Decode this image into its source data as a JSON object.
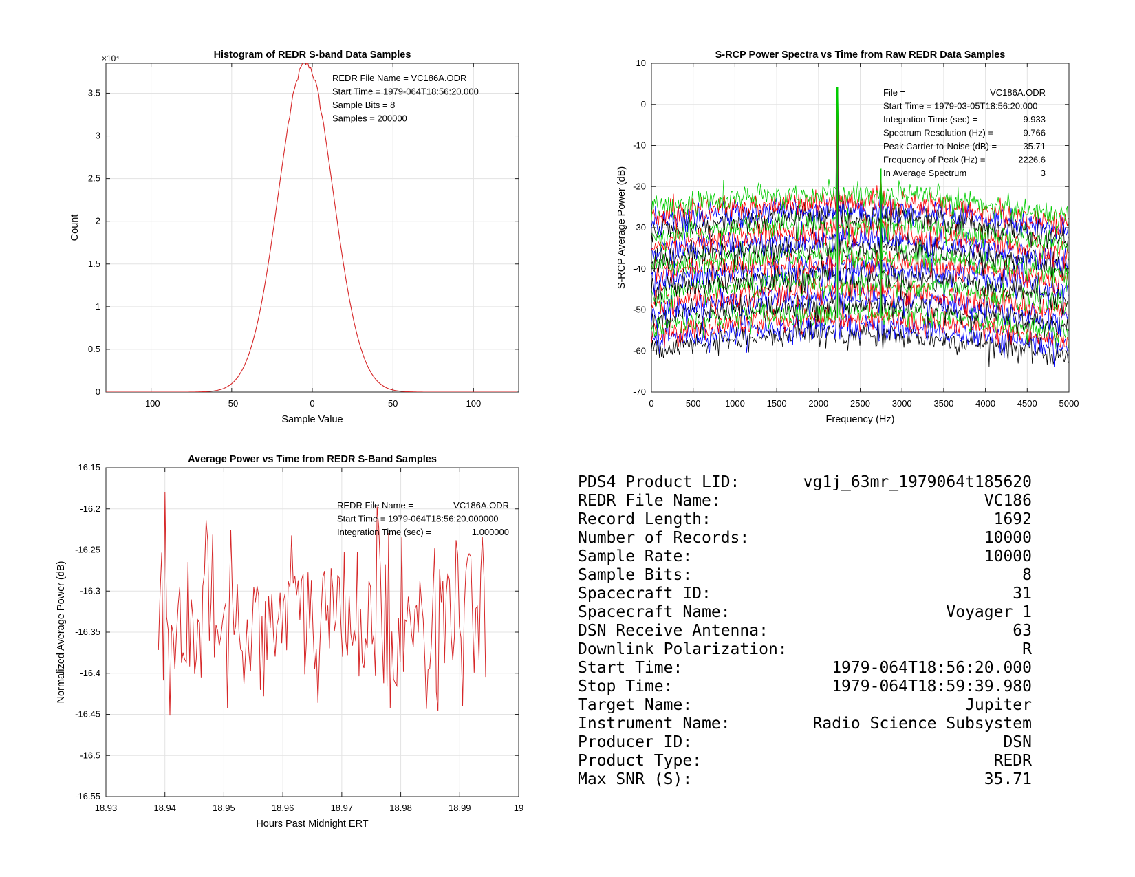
{
  "colors": {
    "histogram": "#d62728",
    "spectra": [
      "#000000",
      "#0000ff",
      "#ff0000",
      "#00cc00"
    ],
    "power": "#d62728"
  },
  "chart_data": [
    {
      "type": "line",
      "title": "Histogram of REDR S-band Data Samples",
      "xlabel": "Sample Value",
      "ylabel": "Count",
      "xlim": [
        -128,
        128
      ],
      "ylim": [
        0,
        38500
      ],
      "y_exponent_label": "×10⁴",
      "xticks": [
        -100,
        -50,
        0,
        50,
        100
      ],
      "yticks": [
        0,
        5000,
        10000,
        15000,
        20000,
        25000,
        30000,
        35000
      ],
      "ytick_labels": [
        "0",
        "0.5",
        "1",
        "1.5",
        "2",
        "2.5",
        "3",
        "3.5"
      ],
      "grid": true,
      "distribution": {
        "shape": "gaussian",
        "mean": -4,
        "std": 17,
        "peak": 38500,
        "support": [
          -128,
          127
        ]
      },
      "annotation": [
        "REDR File Name = VC186A.ODR",
        "Start Time = 1979-064T18:56:20.000",
        "Sample Bits = 8",
        "Samples = 200000"
      ]
    },
    {
      "type": "line",
      "title": "S-RCP Power Spectra vs Time from Raw REDR Data Samples",
      "xlabel": "Frequency (Hz)",
      "ylabel": "S-RCP Average Power (dB)",
      "xlim": [
        0,
        5000
      ],
      "ylim": [
        -70,
        10
      ],
      "xticks": [
        0,
        500,
        1000,
        1500,
        2000,
        2500,
        3000,
        3500,
        4000,
        4500,
        5000
      ],
      "yticks": [
        -70,
        -60,
        -50,
        -40,
        -30,
        -20,
        -10,
        0,
        10
      ],
      "grid": true,
      "series_count": 20,
      "series_offset_db": [
        -56,
        -22
      ],
      "carrier_peaks": [
        {
          "x": 2226.6,
          "y": 4.2
        },
        {
          "x": 2750,
          "y": -15.5
        }
      ],
      "annotation": [
        {
          "label": "File =",
          "value": "VC186A.ODR"
        },
        {
          "label": "Start Time = 1979-03-05T18:56:20.000",
          "value": ""
        },
        {
          "label": "Integration Time (sec) =",
          "value": "9.933"
        },
        {
          "label": "Spectrum Resolution (Hz) =",
          "value": "9.766"
        },
        {
          "label": "Peak Carrier-to-Noise (dB) =",
          "value": "35.71"
        },
        {
          "label": "  Frequency of Peak (Hz) =",
          "value": "2226.6"
        },
        {
          "label": "  In Average Spectrum",
          "value": "3"
        }
      ]
    },
    {
      "type": "line",
      "title": "Average Power vs Time from REDR S-Band Samples",
      "xlabel": "Hours Past Midnight ERT",
      "ylabel": "Normalized Average Power (dB)",
      "xlim": [
        18.93,
        19
      ],
      "ylim": [
        -16.55,
        -16.15
      ],
      "xticks": [
        18.93,
        18.94,
        18.95,
        18.96,
        18.97,
        18.98,
        18.99,
        19
      ],
      "xtick_labels": [
        "18.93",
        "18.94",
        "18.95",
        "18.96",
        "18.97",
        "18.98",
        "18.99",
        "19"
      ],
      "yticks": [
        -16.55,
        -16.5,
        -16.45,
        -16.4,
        -16.35,
        -16.3,
        -16.25,
        -16.2,
        -16.15
      ],
      "ytick_labels": [
        "-16.55",
        "-16.5",
        "-16.45",
        "-16.4",
        "-16.35",
        "-16.3",
        "-16.25",
        "-16.2",
        "-16.15"
      ],
      "grid": true,
      "x_range": [
        18.9389,
        18.9944
      ],
      "y_min": -16.505,
      "y_max": -16.18,
      "annotation": [
        {
          "label": "REDR File Name =",
          "value": "VC186A.ODR"
        },
        {
          "label": "Start Time = 1979-064T18:56:20.000000",
          "value": ""
        },
        {
          "label": "Integration Time (sec) =",
          "value": "1.000000"
        }
      ]
    }
  ],
  "info_table": [
    {
      "label": "PDS4 Product LID:",
      "value": "vg1j_63mr_1979064t185620"
    },
    {
      "label": "REDR File Name:",
      "value": "VC186"
    },
    {
      "label": "Record Length:",
      "value": "1692"
    },
    {
      "label": "Number of Records:",
      "value": "10000"
    },
    {
      "label": "Sample Rate:",
      "value": "10000"
    },
    {
      "label": "Sample Bits:",
      "value": "8"
    },
    {
      "label": "Spacecraft ID:",
      "value": "31"
    },
    {
      "label": "Spacecraft Name:",
      "value": "Voyager 1"
    },
    {
      "label": "DSN Receive Antenna:",
      "value": "63"
    },
    {
      "label": "Downlink Polarization:",
      "value": "R"
    },
    {
      "label": "Start Time:",
      "value": "1979-064T18:56:20.000"
    },
    {
      "label": "Stop Time:",
      "value": "1979-064T18:59:39.980"
    },
    {
      "label": "Target Name:",
      "value": "Jupiter"
    },
    {
      "label": "Instrument Name:",
      "value": "Radio Science Subsystem"
    },
    {
      "label": "Producer ID:",
      "value": "DSN"
    },
    {
      "label": "Product Type:",
      "value": "REDR"
    },
    {
      "label": "Max SNR (S):",
      "value": "35.71"
    }
  ]
}
